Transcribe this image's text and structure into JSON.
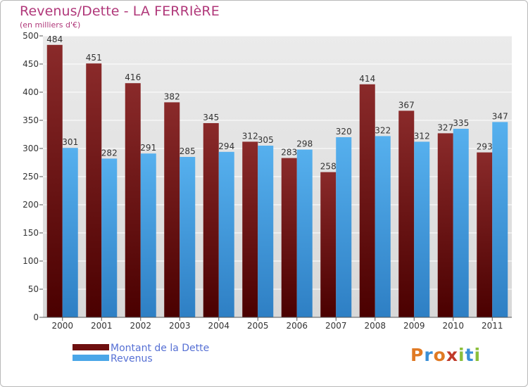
{
  "title": "Revenus/Dette - LA FERRIèRE",
  "subtitle": "(en milliers d'€)",
  "colors": {
    "dette": "#7b1e1e",
    "revenus": "#4aa6e8",
    "title": "#b0387a",
    "legend_text": "#5670d4"
  },
  "legend": [
    {
      "label": "Montant de la Dette",
      "color": "#6e0f0f"
    },
    {
      "label": "Revenus",
      "color": "#4aa6e8"
    }
  ],
  "logo": {
    "letters": [
      "P",
      "r",
      "o",
      "x",
      "i",
      "t",
      "i"
    ],
    "colors": [
      "#e07a24",
      "#3a8fd6",
      "#e07a24",
      "#c03a2a",
      "#8bbf3a",
      "#3a8fd6",
      "#8bbf3a"
    ]
  },
  "chart_data": {
    "type": "bar",
    "categories": [
      "2000",
      "2001",
      "2002",
      "2003",
      "2004",
      "2005",
      "2006",
      "2007",
      "2008",
      "2009",
      "2010",
      "2011"
    ],
    "series": [
      {
        "name": "Montant de la Dette",
        "values": [
          484,
          451,
          416,
          382,
          345,
          312,
          283,
          258,
          414,
          367,
          327,
          293
        ]
      },
      {
        "name": "Revenus",
        "values": [
          301,
          282,
          291,
          285,
          294,
          305,
          298,
          320,
          322,
          312,
          335,
          347
        ]
      }
    ],
    "ylim": [
      0,
      500
    ],
    "yticks": [
      0,
      50,
      100,
      150,
      200,
      250,
      300,
      350,
      400,
      450,
      500
    ],
    "grid": true,
    "legend_position": "bottom-left"
  }
}
